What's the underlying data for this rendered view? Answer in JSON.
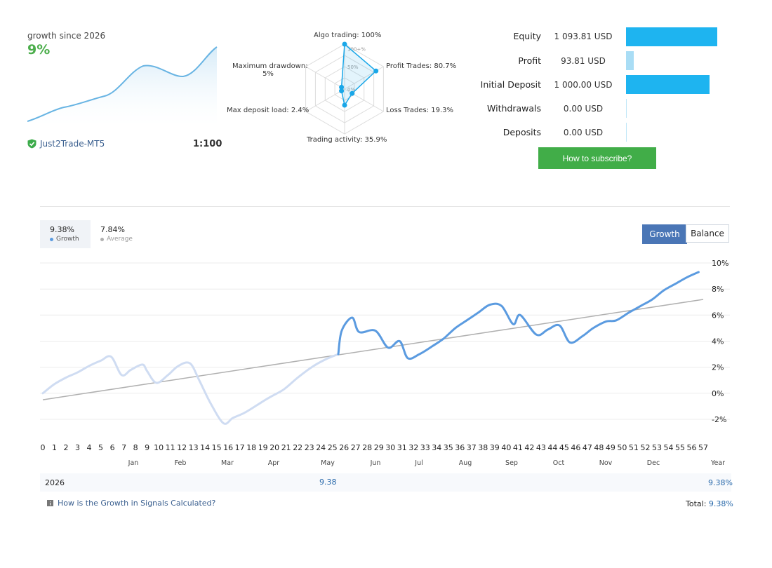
{
  "summary": {
    "growth_caption": "growth since 2026",
    "growth_value": "9%",
    "broker": "Just2Trade-MT5",
    "leverage": "1:100"
  },
  "radar": {
    "labels": {
      "algo": "Algo trading: 100%",
      "profit": "Profit Trades: 80.7%",
      "loss": "Loss Trades: 19.3%",
      "activity": "Trading activity: 35.9%",
      "deposit_load": "Max deposit load: 2.4%",
      "drawdown_1": "Maximum drawdown:",
      "drawdown_2": "5%"
    },
    "ring_labels": [
      "100+%",
      "50%",
      "0%"
    ],
    "values_percent": {
      "algo": 100,
      "profit": 80.7,
      "loss": 19.3,
      "activity": 35.9,
      "deposit_load": 2.4,
      "drawdown": 5
    },
    "color": "#1aa7e8"
  },
  "stats": {
    "equity_label": "Equity",
    "equity_value": "1 093.81 USD",
    "profit_label": "Profit",
    "profit_value": "93.81 USD",
    "initial_label": "Initial Deposit",
    "initial_value": "1 000.00 USD",
    "withdrawals_label": "Withdrawals",
    "withdrawals_value": "0.00 USD",
    "deposits_label": "Deposits",
    "deposits_value": "0.00 USD",
    "bar_color": "#1eb4f0"
  },
  "subscribe_label": "How to subscribe?",
  "legend": {
    "growth_value": "9.38%",
    "growth_name": "Growth",
    "growth_color": "#5b9be0",
    "average_value": "7.84%",
    "average_name": "Average",
    "average_color": "#b0b0b0"
  },
  "toggle": {
    "growth": "Growth",
    "balance": "Balance"
  },
  "table": {
    "year": "2026",
    "may_value": "9.38",
    "year_total": "9.38%",
    "footer_link": "How is the Growth in Signals Calculated?",
    "total_label": "Total:",
    "total_value": "9.38%"
  },
  "chart_data": {
    "type": "line",
    "title": "",
    "xlabel": "",
    "ylabel": "",
    "x_ticks": [
      "0",
      "1",
      "2",
      "3",
      "4",
      "5",
      "6",
      "7",
      "8",
      "9",
      "10",
      "11",
      "12",
      "13",
      "14",
      "15",
      "16",
      "17",
      "18",
      "19",
      "20",
      "21",
      "22",
      "23",
      "24",
      "25",
      "26",
      "27",
      "28",
      "29",
      "30",
      "31",
      "32",
      "33",
      "34",
      "35",
      "36",
      "37",
      "38",
      "39",
      "40",
      "41",
      "42",
      "43",
      "44",
      "45",
      "46",
      "47",
      "48",
      "49",
      "50",
      "51",
      "52",
      "53",
      "54",
      "55",
      "56",
      "57"
    ],
    "month_labels": [
      "Jan",
      "Feb",
      "Mar",
      "Apr",
      "May",
      "Jun",
      "Jul",
      "Aug",
      "Sep",
      "Oct",
      "Nov",
      "Dec",
      "Year"
    ],
    "y_ticks": [
      "10%",
      "8%",
      "6%",
      "4%",
      "2%",
      "0%",
      "-2%"
    ],
    "ylim": [
      -2,
      10
    ],
    "xlim": [
      0,
      57
    ],
    "grid": true,
    "series": [
      {
        "name": "Growth",
        "color": "#5b9be0",
        "faded_color": "#cfdcf2",
        "highlight_from_x": 25.5,
        "x": [
          0,
          1,
          2,
          3,
          4,
          5,
          5.9,
          6.8,
          7.6,
          8.6,
          9,
          9.8,
          10.8,
          11.7,
          12.7,
          13.5,
          14.5,
          15.6,
          16.4,
          17.4,
          18.5,
          19.6,
          20.8,
          22,
          23.2,
          24.4,
          25.5,
          25.8,
          26.7,
          27.3,
          28.7,
          29.8,
          30.8,
          31.5,
          32.5,
          33.6,
          34.6,
          35.6,
          36.6,
          37.6,
          38.6,
          39.6,
          40.6,
          41.2,
          42.6,
          43.6,
          44.6,
          45.5,
          46.6,
          47.5,
          48.6,
          49.5,
          50.6,
          51.6,
          52.6,
          53.6,
          54.6,
          55.6,
          56.6
        ],
        "y": [
          0,
          0.7,
          1.2,
          1.6,
          2.1,
          2.5,
          2.8,
          1.4,
          1.8,
          2.2,
          1.7,
          0.8,
          1.4,
          2.1,
          2.3,
          1.0,
          -0.8,
          -2.3,
          -1.9,
          -1.5,
          -0.9,
          -0.3,
          0.3,
          1.2,
          2.0,
          2.6,
          3.0,
          4.8,
          5.8,
          4.7,
          4.8,
          3.5,
          4.0,
          2.7,
          3.0,
          3.6,
          4.2,
          5.0,
          5.6,
          6.2,
          6.8,
          6.7,
          5.3,
          6.0,
          4.5,
          4.9,
          5.2,
          3.9,
          4.4,
          5.0,
          5.5,
          5.6,
          6.2,
          6.7,
          7.2,
          7.9,
          8.4,
          8.9,
          9.3
        ]
      },
      {
        "name": "Average",
        "color": "#b0b0b0",
        "x": [
          0,
          57
        ],
        "y": [
          -0.5,
          7.2
        ]
      }
    ]
  }
}
